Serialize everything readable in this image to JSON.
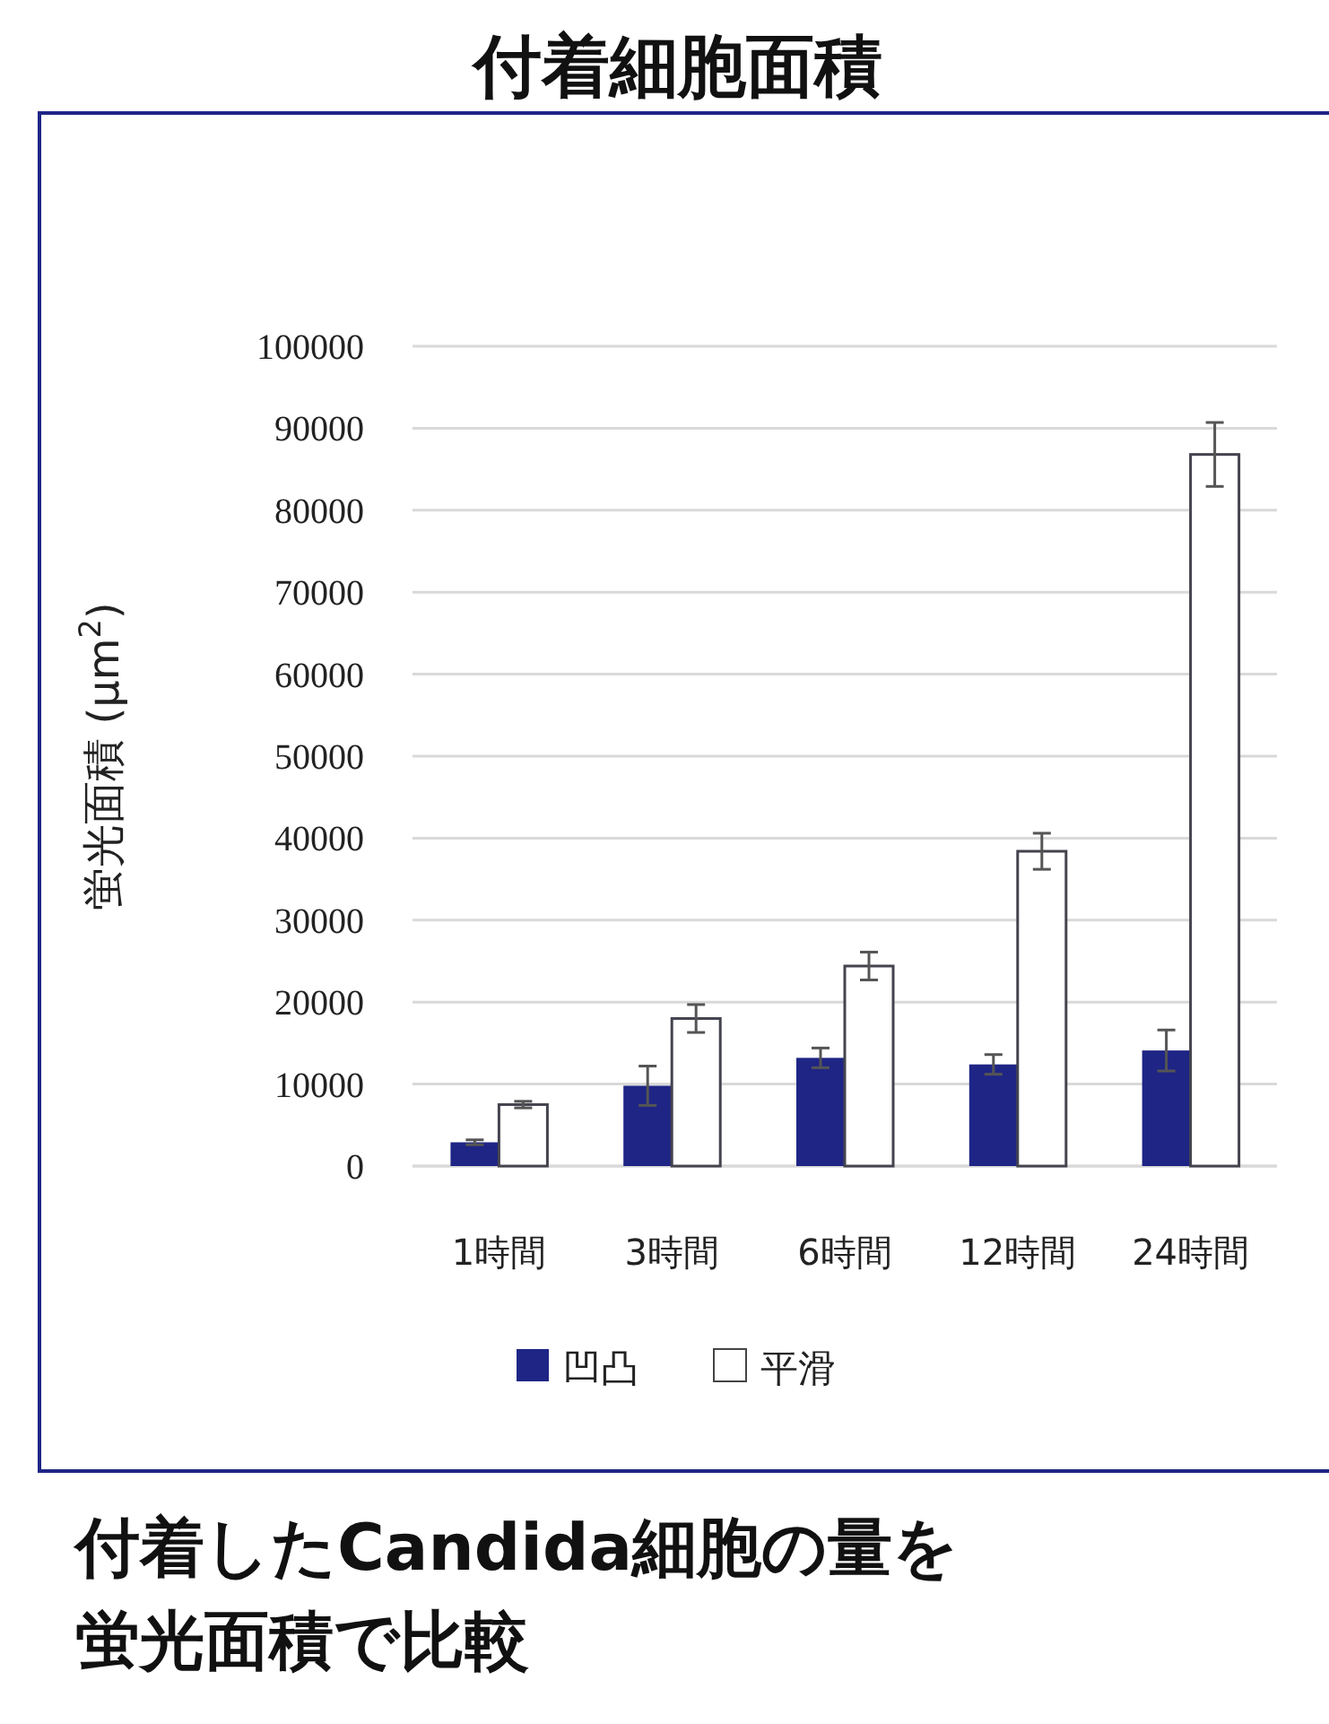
{
  "chart_data": {
    "type": "bar",
    "title": "付着細胞面積",
    "ylabel": "蛍光面積 (µm$^{2}$)",
    "categories": [
      "1時間",
      "3時間",
      "6時間",
      "12時間",
      "24時間"
    ],
    "series": [
      {
        "name": "凹凸",
        "color": "#1f2585",
        "values": [
          2900,
          9800,
          13200,
          12400,
          14100
        ],
        "errors": [
          300,
          2400,
          1200,
          1200,
          2500
        ]
      },
      {
        "name": "平滑",
        "color": "#ffffff",
        "values": [
          7500,
          18000,
          24400,
          38400,
          86800
        ],
        "errors": [
          400,
          1700,
          1700,
          2200,
          3900
        ]
      }
    ],
    "ylim": [
      0,
      100000
    ],
    "yticks": [
      0,
      10000,
      20000,
      30000,
      40000,
      50000,
      60000,
      70000,
      80000,
      90000,
      100000
    ],
    "grid": "y",
    "legend": "bottom",
    "annotations": [
      "付着したCandida細胞の量を蛍光面積で比較"
    ]
  }
}
